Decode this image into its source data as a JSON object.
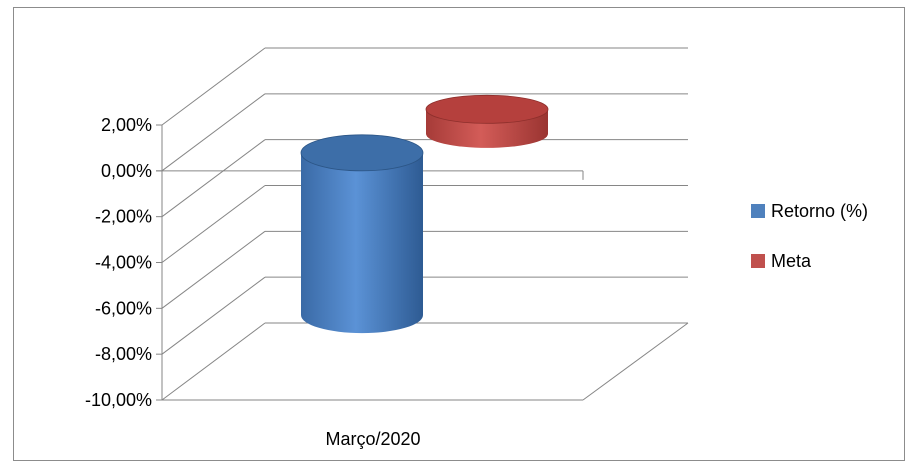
{
  "chart_data": {
    "type": "bar",
    "style": "3d-cylinder",
    "categories": [
      "Março/2020"
    ],
    "series": [
      {
        "name": "Retorno (%)",
        "values": [
          -7.08
        ],
        "color": "#4f81bd"
      },
      {
        "name": "Meta",
        "values": [
          1.07
        ],
        "color": "#c0504d"
      }
    ],
    "ylim": [
      -10,
      2
    ],
    "y_tick_labels": [
      "2,00%",
      "0,00%",
      "-2,00%",
      "-4,00%",
      "-6,00%",
      "-8,00%",
      "-10,00%"
    ],
    "y_tick_values": [
      2,
      0,
      -2,
      -4,
      -6,
      -8,
      -10
    ],
    "grid": true,
    "legend_position": "right"
  }
}
